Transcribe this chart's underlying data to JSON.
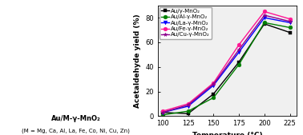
{
  "xlabel": "Temperature (°C)",
  "ylabel": "Acetaldehyde yield (%)",
  "x": [
    100,
    125,
    150,
    175,
    200,
    225
  ],
  "series": [
    {
      "label": "Au/γ-MnO₂",
      "color": "#000000",
      "marker": "s",
      "values": [
        3,
        2,
        18,
        44,
        75,
        68
      ]
    },
    {
      "label": "Au/Al-γ-MnO₂",
      "color": "#008000",
      "marker": "o",
      "values": [
        1,
        4,
        15,
        42,
        76,
        72
      ]
    },
    {
      "label": "Au/La-γ-MnO₂",
      "color": "#0000ff",
      "marker": "v",
      "values": [
        3,
        8,
        25,
        52,
        80,
        76
      ]
    },
    {
      "label": "Au/Fe-γ-MnO₂",
      "color": "#ff1493",
      "marker": "o",
      "values": [
        4,
        10,
        27,
        58,
        85,
        79
      ]
    },
    {
      "label": "Au/Cu-γ-MnO₂",
      "color": "#8b008b",
      "marker": "*",
      "values": [
        3,
        9,
        26,
        54,
        82,
        77
      ]
    }
  ],
  "ylim": [
    0,
    90
  ],
  "yticks": [
    0,
    20,
    40,
    60,
    80
  ],
  "xlim": [
    95,
    232
  ],
  "xticks": [
    100,
    125,
    150,
    175,
    200,
    225
  ],
  "bg_color": "#ffffff",
  "chart_bg": "#f0f0f0",
  "legend_fontsize": 5.0,
  "axis_label_fontsize": 6.5,
  "tick_fontsize": 6.0,
  "linewidth": 1.0,
  "markersize": 3.5,
  "left_panel_text1": "Au/M-γ-MnO₂",
  "left_panel_text2": "(M = Mg, Ca, Al, La, Fe, Co, Ni, Cu, Zn)"
}
